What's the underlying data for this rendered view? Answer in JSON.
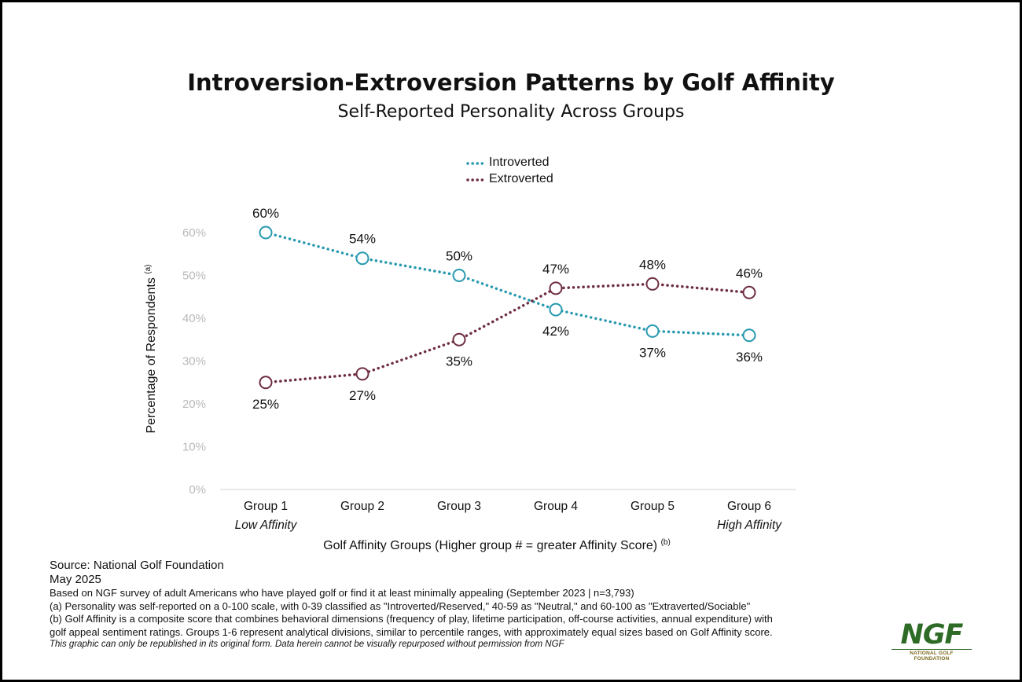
{
  "chart_data": {
    "type": "line",
    "title": "Introversion-Extroversion Patterns by Golf Affinity",
    "subtitle": "Self-Reported Personality Across Groups",
    "categories": [
      "Group 1",
      "Group 2",
      "Group 3",
      "Group 4",
      "Group 5",
      "Group 6"
    ],
    "category_sublabels": [
      "Low Affinity",
      "",
      "",
      "",
      "",
      "High Affinity"
    ],
    "series": [
      {
        "name": "Introverted",
        "color": "#2899b0",
        "values": [
          60,
          54,
          50,
          42,
          37,
          36
        ],
        "labels": [
          "60%",
          "54%",
          "50%",
          "42%",
          "37%",
          "36%"
        ]
      },
      {
        "name": "Extroverted",
        "color": "#6e2e40",
        "values": [
          25,
          27,
          35,
          47,
          48,
          46
        ],
        "labels": [
          "25%",
          "27%",
          "35%",
          "47%",
          "48%",
          "46%"
        ]
      }
    ],
    "ylim": [
      0,
      60
    ],
    "yticks": [
      0,
      10,
      20,
      30,
      40,
      50,
      60
    ],
    "ytick_labels": [
      "0%",
      "10%",
      "20%",
      "30%",
      "40%",
      "50%",
      "60%"
    ],
    "ylabel": "Percentage of Respondents",
    "ylabel_sup": "(a)",
    "xlabel": "Golf Affinity Groups (Higher group # = greater Affinity Score)",
    "xlabel_sup": "(b)",
    "legend_position": "top-center",
    "grid": false
  },
  "footer": {
    "source": "Source: National Golf Foundation",
    "date": "May 2025",
    "note_survey": "Based on NGF survey of adult Americans who have played golf or find it at least minimally appealing (September 2023 | n=3,793)",
    "note_a": "(a) Personality was self-reported on a 0-100 scale, with 0-39 classified as \"Introverted/Reserved,\" 40-59 as \"Neutral,\" and 60-100 as \"Extraverted/Sociable\"",
    "note_b1": "(b) Golf Affinity is a composite score that combines behavioral dimensions (frequency of play, lifetime participation, off-course activities, annual expenditure) with",
    "note_b2": "golf appeal sentiment ratings. Groups 1-6 represent analytical divisions, similar to percentile ranges, with approximately equal sizes based on Golf Affinity score.",
    "disclaimer": "This graphic can only be republished in its original form. Data herein cannot be visually repurposed without permission from NGF"
  },
  "logo": {
    "mark": "NGF",
    "subtext": "NATIONAL GOLF FOUNDATION"
  }
}
